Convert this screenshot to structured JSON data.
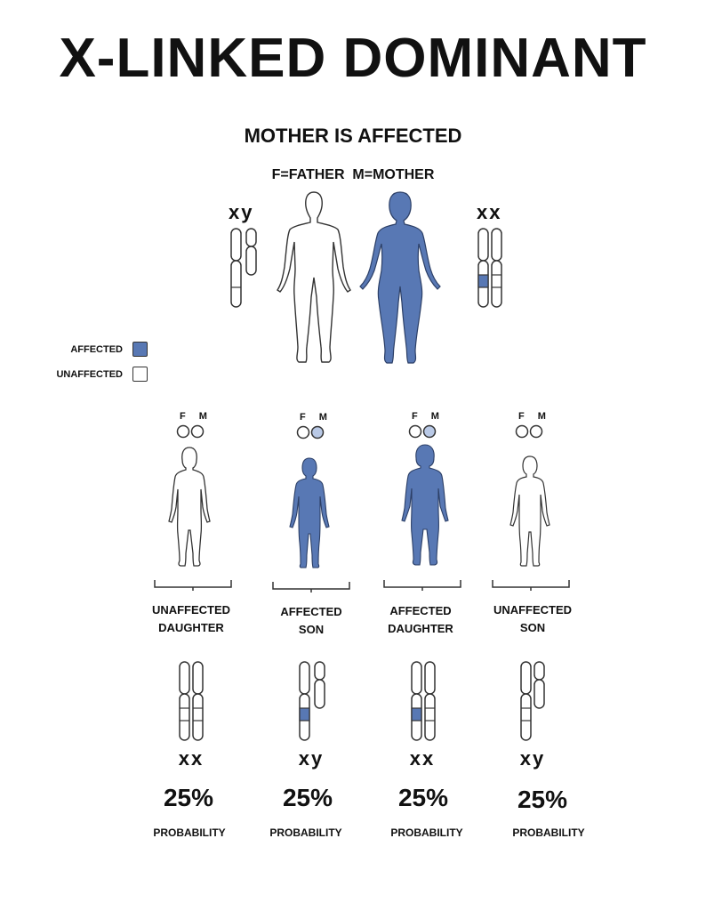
{
  "title": "X-LINKED DOMINANT",
  "subtitle": "MOTHER IS AFFECTED",
  "parents_label": "F=FATHER  M=MOTHER",
  "father_chromosomes": "xy",
  "mother_chromosomes": "xx",
  "legend": {
    "affected": "AFFECTED",
    "unaffected": "UNAFFECTED"
  },
  "colors": {
    "affected": "#5878b4",
    "affected_light": "#b9c9e6",
    "outline": "#333333"
  },
  "fm_label": "F M",
  "children": [
    {
      "label_line1": "UNAFFECTED",
      "label_line2": "DAUGHTER",
      "chromosomes": "xx",
      "percent": "25%",
      "probability": "PROBABILITY"
    },
    {
      "label_line1": "AFFECTED",
      "label_line2": "SON",
      "chromosomes": "xy",
      "percent": "25%",
      "probability": "PROBABILITY"
    },
    {
      "label_line1": "AFFECTED",
      "label_line2": "DAUGHTER",
      "chromosomes": "xx",
      "percent": "25%",
      "probability": "PROBABILITY"
    },
    {
      "label_line1": "UNAFFECTED",
      "label_line2": "SON",
      "chromosomes": "xy",
      "percent": "25%",
      "probability": "PROBABILITY"
    }
  ]
}
